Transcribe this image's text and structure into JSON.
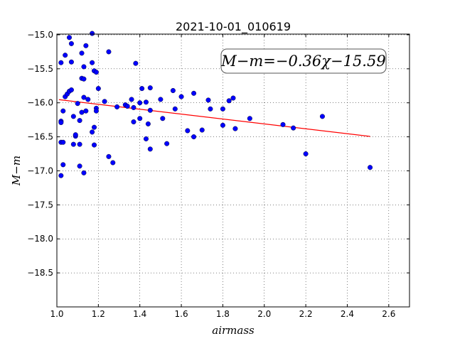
{
  "chart_data": {
    "type": "scatter",
    "title": "2021-10-01_010619",
    "xlabel": "airmass",
    "ylabel": "M−m",
    "xlim": [
      1.0,
      2.7
    ],
    "ylim": [
      -14.99,
      -19.0
    ],
    "y_inverted": true,
    "grid": true,
    "xticks": [
      1.0,
      1.2,
      1.4,
      1.6,
      1.8,
      2.0,
      2.2,
      2.4,
      2.6
    ],
    "xtick_labels": [
      "1.0",
      "1.2",
      "1.4",
      "1.6",
      "1.8",
      "2.0",
      "2.2",
      "2.4",
      "2.6"
    ],
    "yticks": [
      -15.0,
      -15.5,
      -16.0,
      -16.5,
      -17.0,
      -17.5,
      -18.0,
      -18.5
    ],
    "ytick_labels": [
      "−15.0",
      "−15.5",
      "−16.0",
      "−16.5",
      "−17.0",
      "−17.5",
      "−18.0",
      "−18.5"
    ],
    "annotation": "M−m=−0.36χ−15.59",
    "colors": {
      "points": "#0000ff",
      "fit": "#ff0000"
    },
    "fit": {
      "slope": -0.36,
      "intercept": -15.59,
      "x_range": [
        1.01,
        2.51
      ]
    },
    "series": [
      {
        "points": [
          [
            1.02,
            -16.27
          ],
          [
            1.02,
            -16.29
          ],
          [
            1.02,
            -16.58
          ],
          [
            1.02,
            -17.07
          ],
          [
            1.02,
            -15.41
          ],
          [
            1.03,
            -16.58
          ],
          [
            1.03,
            -16.91
          ],
          [
            1.03,
            -16.12
          ],
          [
            1.04,
            -15.3
          ],
          [
            1.04,
            -15.91
          ],
          [
            1.05,
            -15.87
          ],
          [
            1.06,
            -15.83
          ],
          [
            1.06,
            -15.04
          ],
          [
            1.07,
            -15.81
          ],
          [
            1.07,
            -15.13
          ],
          [
            1.07,
            -15.4
          ],
          [
            1.08,
            -16.2
          ],
          [
            1.08,
            -16.61
          ],
          [
            1.09,
            -16.49
          ],
          [
            1.09,
            -16.47
          ],
          [
            1.1,
            -16.01
          ],
          [
            1.11,
            -16.93
          ],
          [
            1.11,
            -16.26
          ],
          [
            1.11,
            -16.61
          ],
          [
            1.12,
            -15.27
          ],
          [
            1.12,
            -15.64
          ],
          [
            1.12,
            -16.14
          ],
          [
            1.13,
            -15.65
          ],
          [
            1.13,
            -15.47
          ],
          [
            1.13,
            -15.92
          ],
          [
            1.13,
            -17.03
          ],
          [
            1.14,
            -15.16
          ],
          [
            1.14,
            -16.12
          ],
          [
            1.15,
            -15.95
          ],
          [
            1.17,
            -15.41
          ],
          [
            1.17,
            -14.98
          ],
          [
            1.17,
            -16.43
          ],
          [
            1.18,
            -16.62
          ],
          [
            1.18,
            -16.36
          ],
          [
            1.18,
            -15.53
          ],
          [
            1.19,
            -15.55
          ],
          [
            1.19,
            -16.08
          ],
          [
            1.19,
            -16.12
          ],
          [
            1.2,
            -15.79
          ],
          [
            1.23,
            -15.98
          ],
          [
            1.25,
            -16.79
          ],
          [
            1.25,
            -15.25
          ],
          [
            1.27,
            -16.88
          ],
          [
            1.29,
            -16.06
          ],
          [
            1.33,
            -16.03
          ],
          [
            1.34,
            -16.05
          ],
          [
            1.36,
            -15.95
          ],
          [
            1.37,
            -16.07
          ],
          [
            1.37,
            -16.28
          ],
          [
            1.38,
            -15.42
          ],
          [
            1.4,
            -16.23
          ],
          [
            1.4,
            -16.0
          ],
          [
            1.41,
            -15.79
          ],
          [
            1.43,
            -16.53
          ],
          [
            1.43,
            -15.99
          ],
          [
            1.44,
            -16.31
          ],
          [
            1.45,
            -16.11
          ],
          [
            1.45,
            -15.78
          ],
          [
            1.45,
            -16.68
          ],
          [
            1.5,
            -15.95
          ],
          [
            1.51,
            -16.23
          ],
          [
            1.53,
            -16.6
          ],
          [
            1.56,
            -15.82
          ],
          [
            1.57,
            -16.09
          ],
          [
            1.6,
            -15.91
          ],
          [
            1.63,
            -16.41
          ],
          [
            1.66,
            -15.86
          ],
          [
            1.66,
            -16.5
          ],
          [
            1.7,
            -16.4
          ],
          [
            1.73,
            -15.96
          ],
          [
            1.74,
            -16.09
          ],
          [
            1.8,
            -16.09
          ],
          [
            1.8,
            -16.33
          ],
          [
            1.83,
            -15.97
          ],
          [
            1.85,
            -15.93
          ],
          [
            1.86,
            -16.38
          ],
          [
            1.93,
            -16.23
          ],
          [
            2.09,
            -16.32
          ],
          [
            2.14,
            -16.37
          ],
          [
            2.2,
            -16.75
          ],
          [
            2.28,
            -16.2
          ],
          [
            2.51,
            -16.95
          ]
        ]
      }
    ]
  }
}
